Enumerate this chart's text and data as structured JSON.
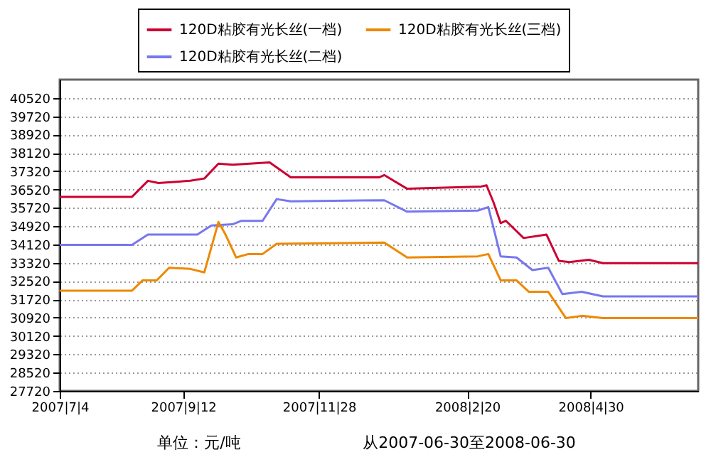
{
  "chart_data": {
    "type": "line",
    "xlim": [
      "2007-07-04",
      "2008-06-30"
    ],
    "xticks": [
      {
        "value": "2007-07-04",
        "label": "2007|7|4"
      },
      {
        "value": "2007-09-12",
        "label": "2007|9|12"
      },
      {
        "value": "2007-11-28",
        "label": "2007|11|28"
      },
      {
        "value": "2008-02-20",
        "label": "2008|2|20"
      },
      {
        "value": "2008-04-30",
        "label": "2008|4|30"
      }
    ],
    "ylim": [
      27720,
      41320
    ],
    "yticks": [
      27720,
      28520,
      29320,
      30120,
      30920,
      31720,
      32520,
      33320,
      34120,
      34920,
      35720,
      36520,
      37320,
      38120,
      38920,
      39720,
      40520
    ],
    "grid": "y",
    "legend": "top",
    "line_style": "solid",
    "marker": "none",
    "annotations": [
      "单位：元/吨",
      "从2007-06-30至2008-06-30"
    ],
    "series": [
      {
        "name": "120D粘胶有光长丝(一档)",
        "color": "#cc0033",
        "x": [
          "2007-07-04",
          "2007-08-14",
          "2007-08-23",
          "2007-08-29",
          "2007-09-16",
          "2007-09-24",
          "2007-10-02",
          "2007-10-10",
          "2007-10-31",
          "2007-11-12",
          "2008-01-01",
          "2008-01-04",
          "2008-01-17",
          "2008-02-28",
          "2008-03-02",
          "2008-03-06",
          "2008-03-10",
          "2008-03-13",
          "2008-03-23",
          "2008-04-05",
          "2008-04-12",
          "2008-04-18",
          "2008-04-29",
          "2008-05-07",
          "2008-06-30"
        ],
        "values": [
          36200,
          36200,
          36900,
          36800,
          36900,
          37000,
          37650,
          37600,
          37700,
          37050,
          37050,
          37150,
          36550,
          36650,
          36700,
          35950,
          35050,
          35150,
          34400,
          34550,
          33400,
          33350,
          33450,
          33300,
          33300
        ]
      },
      {
        "name": "120D粘胶有光长丝(二档)",
        "color": "#7777ee",
        "x": [
          "2007-07-04",
          "2007-08-14",
          "2007-08-23",
          "2007-08-29",
          "2007-09-20",
          "2007-09-28",
          "2007-10-10",
          "2007-10-15",
          "2007-10-27",
          "2007-11-04",
          "2007-11-12",
          "2008-01-04",
          "2008-01-17",
          "2008-02-26",
          "2008-03-03",
          "2008-03-10",
          "2008-03-19",
          "2008-03-28",
          "2008-04-06",
          "2008-04-14",
          "2008-04-25",
          "2008-05-07",
          "2008-06-30"
        ],
        "values": [
          34100,
          34100,
          34550,
          34550,
          34550,
          34950,
          35000,
          35150,
          35150,
          36100,
          36000,
          36050,
          35550,
          35600,
          35750,
          33600,
          33550,
          33000,
          33100,
          31950,
          32050,
          31850,
          31850
        ]
      },
      {
        "name": "120D粘胶有光长丝(三档)",
        "color": "#ee8800",
        "x": [
          "2007-07-04",
          "2007-08-14",
          "2007-08-20",
          "2007-08-28",
          "2007-09-04",
          "2007-09-16",
          "2007-09-24",
          "2007-10-02",
          "2007-10-06",
          "2007-10-12",
          "2007-10-19",
          "2007-10-27",
          "2007-11-04",
          "2008-01-04",
          "2008-01-17",
          "2008-02-26",
          "2008-03-03",
          "2008-03-10",
          "2008-03-19",
          "2008-03-26",
          "2008-04-06",
          "2008-04-16",
          "2008-04-25",
          "2008-05-07",
          "2008-06-30"
        ],
        "values": [
          32100,
          32100,
          32550,
          32550,
          33100,
          33050,
          32900,
          35100,
          34550,
          33550,
          33700,
          33700,
          34150,
          34200,
          33550,
          33600,
          33700,
          32550,
          32550,
          32050,
          32050,
          30900,
          31000,
          30900,
          30900
        ]
      }
    ]
  }
}
